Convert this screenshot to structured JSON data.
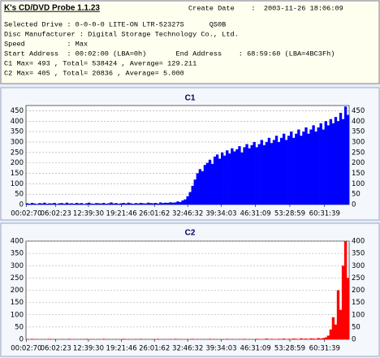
{
  "header": {
    "title": "K's CD/DVD Probe 1.1.23",
    "create_date": "Create Date    :  2003-11-26 18:06:09",
    "lines": [
      "Selected Drive : 0-0-0-0 LITE-ON LTR-52327S      QS0B",
      "Disc Manufacturer : Digital Storage Technology Co., Ltd.",
      "Speed          : Max",
      "Start Address  : 00:02:00 (LBA=0h)       End Address    : 68:59:60 (LBA=4BC3Fh)",
      "C1 Max= 493 , Total= 538424 , Average= 129.211",
      "C2 Max= 405 , Total= 20836 , Average= 5.000"
    ]
  },
  "chart_data": [
    {
      "type": "bar",
      "title": "C1",
      "color": "#0000ff",
      "grid": true,
      "xlim": [
        0,
        65.5
      ],
      "ylim": [
        0,
        475
      ],
      "yticks": [
        0,
        50,
        100,
        150,
        200,
        250,
        300,
        350,
        400,
        450
      ],
      "xticks": [
        {
          "value": 0.049,
          "label": "00:02:70"
        },
        {
          "value": 6.038,
          "label": "06:02:23"
        },
        {
          "value": 12.657,
          "label": "12:39:30"
        },
        {
          "value": 19.36,
          "label": "19:21:46"
        },
        {
          "value": 26.03,
          "label": "26:01:62"
        },
        {
          "value": 32.774,
          "label": "32:46:32"
        },
        {
          "value": 39.567,
          "label": "39:34:03"
        },
        {
          "value": 46.519,
          "label": "46:31:09"
        },
        {
          "value": 53.48,
          "label": "53:28:59"
        },
        {
          "value": 60.525,
          "label": "60:31:39"
        }
      ],
      "x": [
        0,
        0.5,
        1,
        1.5,
        2,
        2.5,
        3,
        3.5,
        4,
        4.5,
        5,
        5.5,
        6,
        6.5,
        7,
        7.5,
        8,
        8.5,
        9,
        9.5,
        10,
        10.5,
        11,
        11.5,
        12,
        12.5,
        13,
        13.5,
        14,
        14.5,
        15,
        15.5,
        16,
        16.5,
        17,
        17.5,
        18,
        18.5,
        19,
        19.5,
        20,
        20.5,
        21,
        21.5,
        22,
        22.5,
        23,
        23.5,
        24,
        24.5,
        25,
        25.5,
        26,
        26.5,
        27,
        27.5,
        28,
        28.5,
        29,
        29.5,
        30,
        30.5,
        31,
        31.5,
        32,
        32.5,
        33,
        33.5,
        34,
        34.5,
        35,
        35.5,
        36,
        36.5,
        37,
        37.5,
        38,
        38.5,
        39,
        39.5,
        40,
        40.5,
        41,
        41.5,
        42,
        42.5,
        43,
        43.5,
        44,
        44.5,
        45,
        45.5,
        46,
        46.5,
        47,
        47.5,
        48,
        48.5,
        49,
        49.5,
        50,
        50.5,
        51,
        51.5,
        52,
        52.5,
        53,
        53.5,
        54,
        54.5,
        55,
        55.5,
        56,
        56.5,
        57,
        57.5,
        58,
        58.5,
        59,
        59.5,
        60,
        60.5,
        61,
        61.5,
        62,
        62.5,
        63,
        63.5,
        64,
        64.5,
        65
      ],
      "values": [
        6,
        4,
        8,
        5,
        3,
        7,
        5,
        9,
        4,
        6,
        5,
        8,
        3,
        6,
        7,
        4,
        9,
        5,
        6,
        4,
        8,
        5,
        7,
        3,
        6,
        9,
        5,
        4,
        7,
        6,
        5,
        8,
        4,
        6,
        10,
        5,
        7,
        4,
        6,
        8,
        5,
        9,
        6,
        4,
        7,
        5,
        8,
        6,
        5,
        9,
        7,
        6,
        8,
        5,
        10,
        7,
        9,
        8,
        11,
        9,
        10,
        15,
        12,
        20,
        25,
        40,
        60,
        90,
        120,
        150,
        170,
        160,
        190,
        200,
        215,
        195,
        230,
        240,
        220,
        250,
        235,
        260,
        245,
        270,
        255,
        265,
        280,
        250,
        275,
        290,
        270,
        285,
        300,
        275,
        290,
        310,
        285,
        300,
        320,
        295,
        310,
        330,
        300,
        320,
        340,
        310,
        330,
        350,
        320,
        340,
        360,
        330,
        350,
        370,
        340,
        360,
        380,
        350,
        370,
        390,
        360,
        400,
        380,
        410,
        390,
        420,
        400,
        440,
        410,
        470,
        430
      ]
    },
    {
      "type": "bar",
      "title": "C2",
      "color": "#ff0000",
      "grid": true,
      "xlim": [
        0,
        65.5
      ],
      "ylim": [
        0,
        400
      ],
      "yticks": [
        0,
        50,
        100,
        150,
        200,
        250,
        300,
        350,
        400
      ],
      "xticks": [
        {
          "value": 0.049,
          "label": "00:02:70"
        },
        {
          "value": 6.038,
          "label": "06:02:23"
        },
        {
          "value": 12.657,
          "label": "12:39:30"
        },
        {
          "value": 19.36,
          "label": "19:21:46"
        },
        {
          "value": 26.03,
          "label": "26:01:62"
        },
        {
          "value": 32.774,
          "label": "32:46:32"
        },
        {
          "value": 39.567,
          "label": "39:34:03"
        },
        {
          "value": 46.519,
          "label": "46:31:09"
        },
        {
          "value": 53.48,
          "label": "53:28:59"
        },
        {
          "value": 60.525,
          "label": "60:31:39"
        }
      ],
      "x": [
        0,
        0.5,
        1,
        1.5,
        2,
        2.5,
        3,
        3.5,
        4,
        4.5,
        5,
        5.5,
        6,
        6.5,
        7,
        7.5,
        8,
        8.5,
        9,
        9.5,
        10,
        10.5,
        11,
        11.5,
        12,
        12.5,
        13,
        13.5,
        14,
        14.5,
        15,
        15.5,
        16,
        16.5,
        17,
        17.5,
        18,
        18.5,
        19,
        19.5,
        20,
        20.5,
        21,
        21.5,
        22,
        22.5,
        23,
        23.5,
        24,
        24.5,
        25,
        25.5,
        26,
        26.5,
        27,
        27.5,
        28,
        28.5,
        29,
        29.5,
        30,
        30.5,
        31,
        31.5,
        32,
        32.5,
        33,
        33.5,
        34,
        34.5,
        35,
        35.5,
        36,
        36.5,
        37,
        37.5,
        38,
        38.5,
        39,
        39.5,
        40,
        40.5,
        41,
        41.5,
        42,
        42.5,
        43,
        43.5,
        44,
        44.5,
        45,
        45.5,
        46,
        46.5,
        47,
        47.5,
        48,
        48.5,
        49,
        49.5,
        50,
        50.5,
        51,
        51.5,
        52,
        52.5,
        53,
        53.5,
        54,
        54.5,
        55,
        55.5,
        56,
        56.5,
        57,
        57.5,
        58,
        58.5,
        59,
        59.5,
        60,
        60.5,
        61,
        61.5,
        62,
        62.5,
        63,
        63.5,
        64,
        64.5,
        65
      ],
      "values": [
        1,
        0,
        2,
        0,
        1,
        0,
        0,
        1,
        0,
        2,
        0,
        1,
        0,
        0,
        1,
        0,
        0,
        2,
        0,
        1,
        0,
        0,
        1,
        0,
        2,
        0,
        1,
        0,
        0,
        1,
        0,
        2,
        0,
        1,
        0,
        0,
        1,
        0,
        0,
        2,
        0,
        1,
        0,
        0,
        1,
        0,
        2,
        0,
        1,
        0,
        0,
        1,
        0,
        2,
        0,
        1,
        0,
        0,
        1,
        0,
        2,
        0,
        1,
        0,
        0,
        1,
        0,
        2,
        0,
        1,
        0,
        0,
        1,
        0,
        2,
        0,
        1,
        0,
        0,
        1,
        0,
        2,
        0,
        1,
        0,
        0,
        1,
        0,
        2,
        0,
        1,
        0,
        0,
        2,
        1,
        0,
        1,
        3,
        0,
        2,
        1,
        0,
        2,
        1,
        3,
        0,
        2,
        1,
        3,
        2,
        1,
        4,
        2,
        3,
        1,
        4,
        3,
        2,
        5,
        3,
        5,
        8,
        15,
        40,
        90,
        60,
        200,
        120,
        300,
        400,
        250
      ]
    }
  ]
}
